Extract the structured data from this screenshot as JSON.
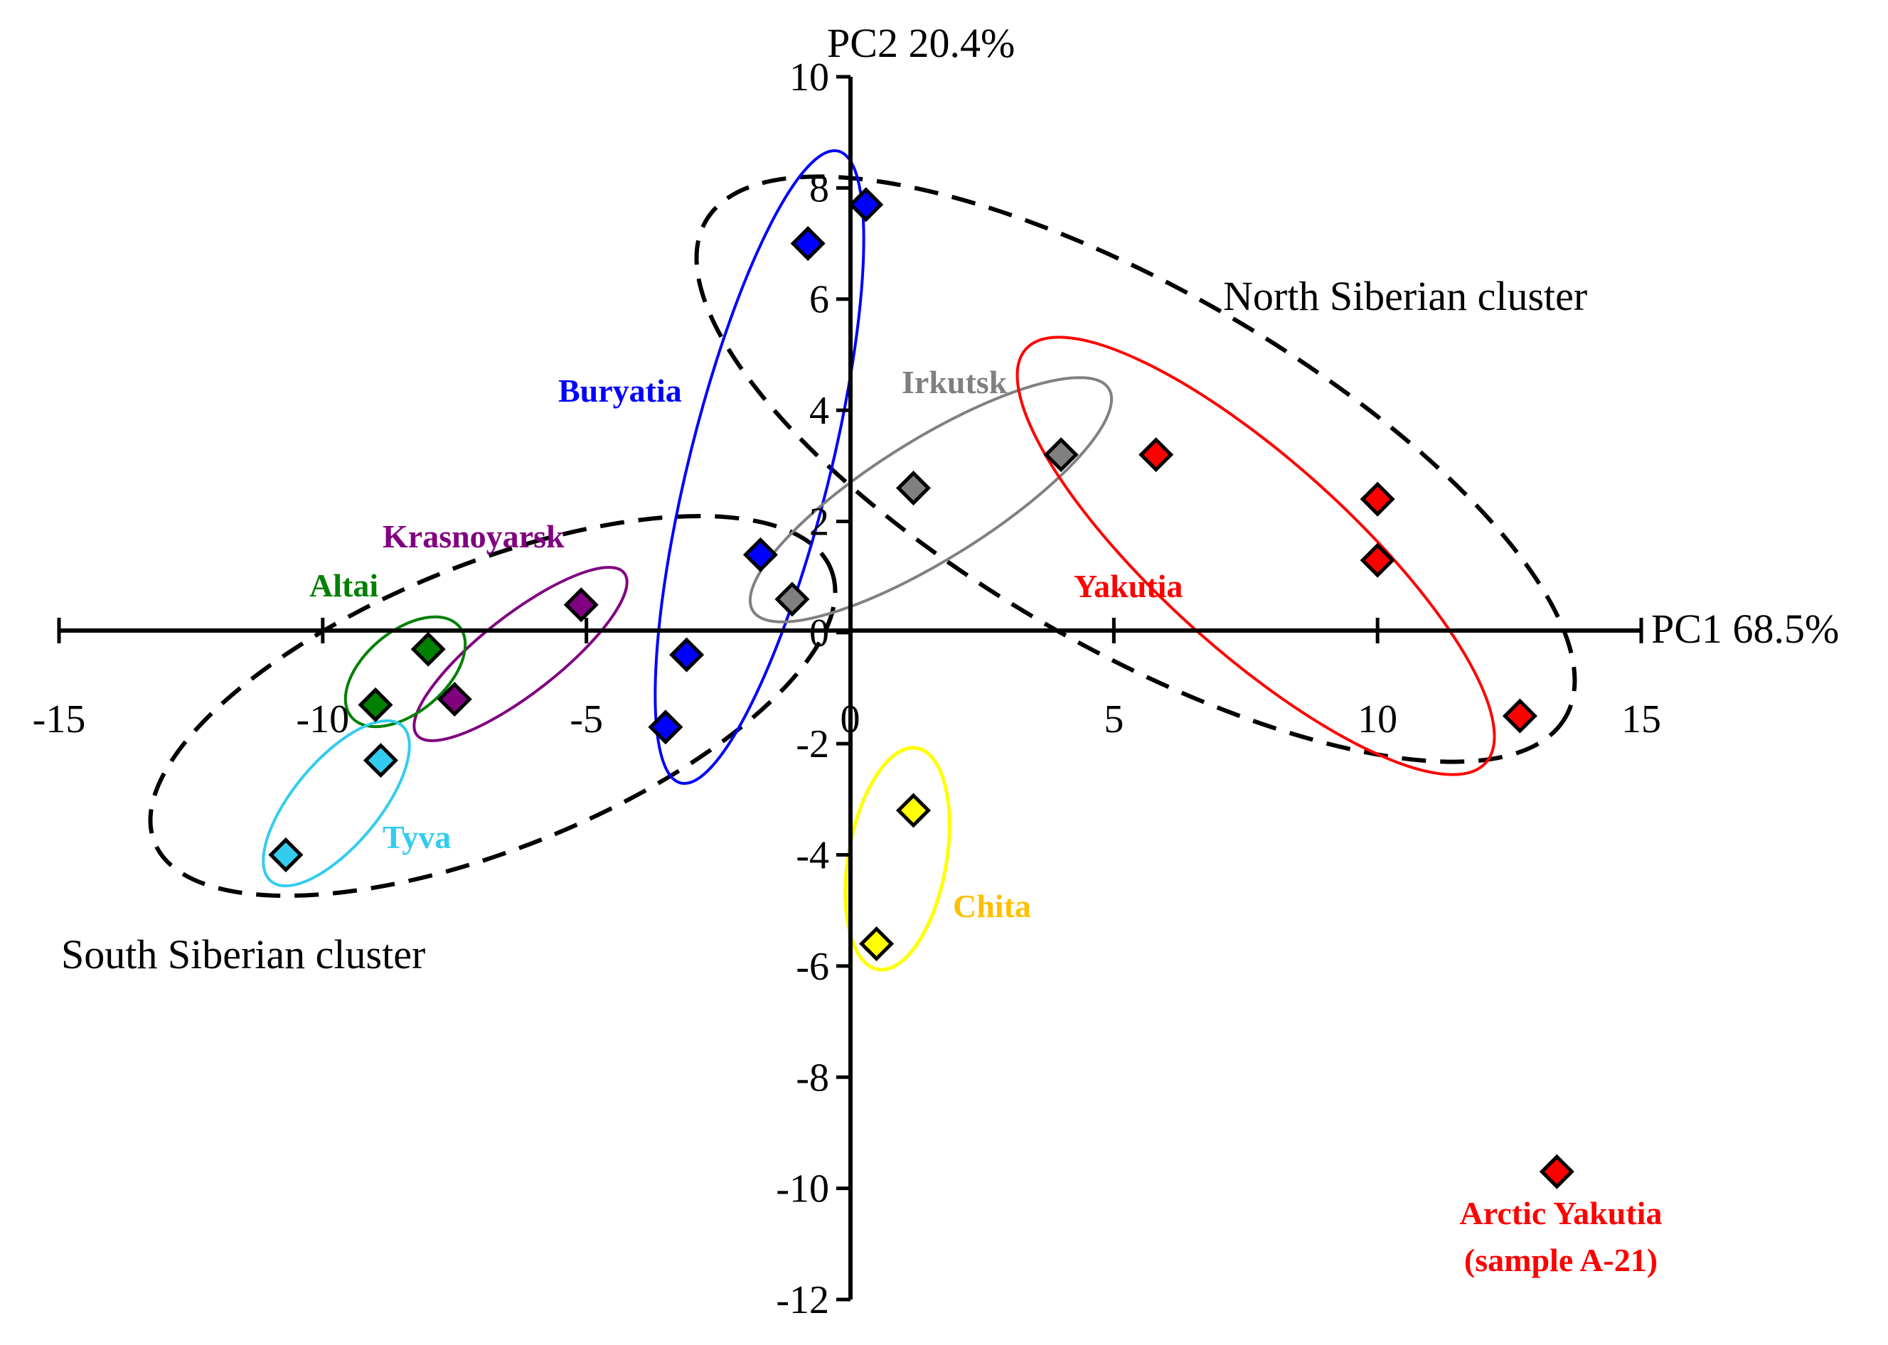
{
  "chart_data": {
    "type": "scatter",
    "xlabel": "PC1 68.5%",
    "ylabel": "PC2 20.4%",
    "xlim": [
      -15,
      15
    ],
    "ylim": [
      -12,
      10
    ],
    "x_ticks": [
      -15,
      -10,
      -5,
      0,
      5,
      10,
      15
    ],
    "y_ticks": [
      -12,
      -10,
      -8,
      -6,
      -4,
      -2,
      0,
      2,
      4,
      6,
      8,
      10
    ],
    "grid": false,
    "series": [
      {
        "name": "Buryatia",
        "color": "#0000FF",
        "label_color": "#0000FF",
        "points": [
          [
            0.3,
            7.7
          ],
          [
            -0.8,
            7.0
          ],
          [
            -1.7,
            1.4
          ],
          [
            -3.1,
            -0.4
          ],
          [
            -3.5,
            -1.7
          ]
        ]
      },
      {
        "name": "Irkutsk",
        "color": "#808080",
        "label_color": "#808080",
        "points": [
          [
            4.0,
            3.2
          ],
          [
            1.2,
            2.6
          ],
          [
            -1.1,
            0.6
          ]
        ]
      },
      {
        "name": "Yakutia",
        "color": "#FF0000",
        "label_color": "#FF0000",
        "points": [
          [
            5.8,
            3.2
          ],
          [
            10.0,
            2.4
          ],
          [
            10.0,
            1.3
          ],
          [
            12.7,
            -1.5
          ]
        ]
      },
      {
        "name": "Krasnoyarsk",
        "color": "#800080",
        "label_color": "#800080",
        "points": [
          [
            -5.1,
            0.5
          ],
          [
            -7.5,
            -1.2
          ]
        ]
      },
      {
        "name": "Altai",
        "color": "#008000",
        "label_color": "#008000",
        "points": [
          [
            -8.0,
            -0.3
          ],
          [
            -9.0,
            -1.3
          ]
        ]
      },
      {
        "name": "Tyva",
        "color": "#33CCEE",
        "label_color": "#33CCEE",
        "points": [
          [
            -8.9,
            -2.3
          ],
          [
            -10.7,
            -4.0
          ]
        ]
      },
      {
        "name": "Chita",
        "color": "#FFFF00",
        "label_color": "#FFC000",
        "points": [
          [
            1.2,
            -3.2
          ],
          [
            0.5,
            -5.6
          ]
        ]
      },
      {
        "name": "Arctic Yakutia (sample A-21)",
        "color": "#FF0000",
        "label_color": "#FF0000",
        "points": [
          [
            13.4,
            -9.7
          ]
        ]
      }
    ],
    "annotations": [
      {
        "text": "North Siberian cluster"
      },
      {
        "text": "South Siberian cluster"
      },
      {
        "text": "Buryatia"
      },
      {
        "text": "Irkutsk"
      },
      {
        "text": "Krasnoyarsk"
      },
      {
        "text": "Altai"
      },
      {
        "text": "Yakutia"
      },
      {
        "text": "Tyva"
      },
      {
        "text": "Chita"
      },
      {
        "text": "Arctic Yakutia"
      },
      {
        "text": "(sample A-21)"
      }
    ]
  }
}
